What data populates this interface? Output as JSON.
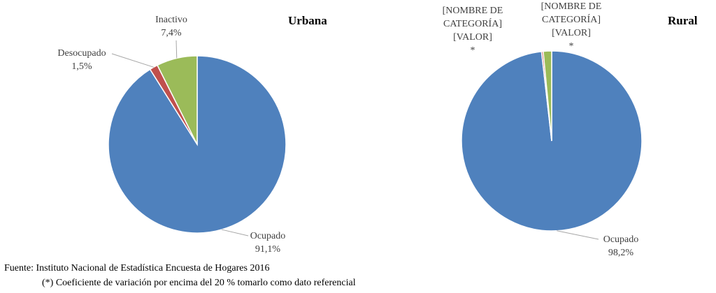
{
  "chart_data": [
    {
      "type": "pie",
      "title": "Urbana",
      "categories": [
        "Ocupado",
        "Desocupado",
        "Inactivo"
      ],
      "values": [
        91.1,
        1.5,
        7.4
      ],
      "value_labels": [
        "91,1%",
        "1,5%",
        "7,4%"
      ],
      "colors": [
        "#4f81bd",
        "#c0504d",
        "#9bbb59"
      ]
    },
    {
      "type": "pie",
      "title": "Rural",
      "categories": [
        "Ocupado",
        "[NOMBRE DE CATEGORÍA]",
        "[NOMBRE DE CATEGORÍA]"
      ],
      "values": [
        98.2,
        0.3,
        1.5
      ],
      "value_labels": [
        "98,2%",
        "[VALOR]",
        "[VALOR]"
      ],
      "flag": "*",
      "flagged": [
        false,
        true,
        true
      ],
      "colors": [
        "#4f81bd",
        "#c0504d",
        "#9bbb59"
      ]
    }
  ],
  "source": "Fuente: Instituto Nacional de Estadística Encuesta de Hogares 2016",
  "note": "(*) Coeficiente de variación por encima del 20 % tomarlo como dato referencial"
}
